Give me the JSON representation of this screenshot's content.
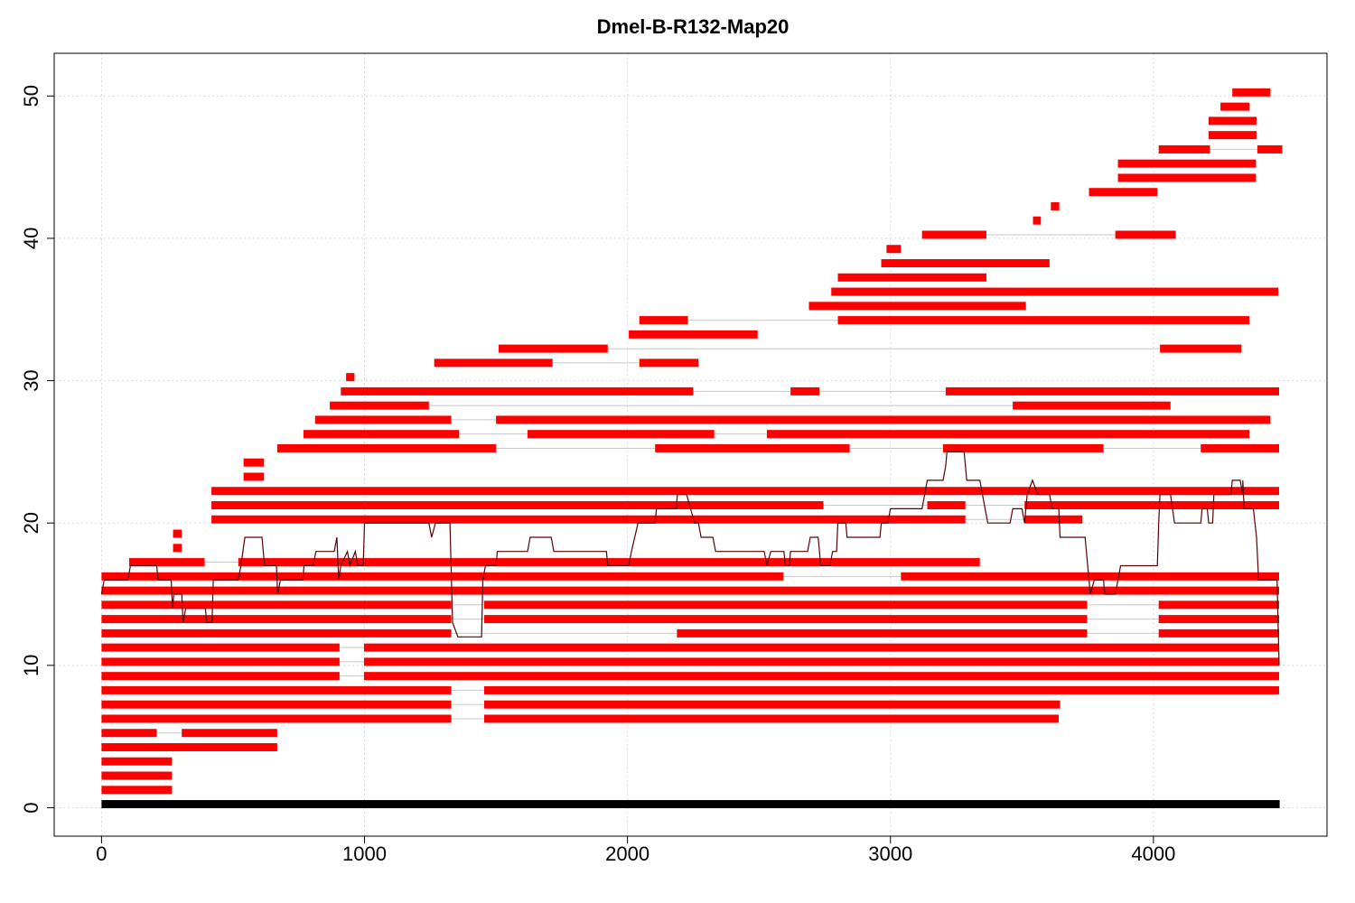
{
  "chart_data": {
    "type": "bar",
    "title": "Dmel-B-R132-Map20",
    "xlabel": "",
    "ylabel": "",
    "xlim": [
      -180,
      4660
    ],
    "ylim": [
      -2,
      53
    ],
    "x_ticks": [
      0,
      1000,
      2000,
      3000,
      4000
    ],
    "y_ticks": [
      0,
      10,
      20,
      30,
      40,
      50
    ],
    "grid": true,
    "colors": {
      "segment": "#ff0000",
      "reference": "#000000",
      "connector": "#c8c8c8",
      "coverage": "#5a0000",
      "grid": "#d9d9d9"
    },
    "reference": {
      "y": 0.25,
      "x_start": 0,
      "x_end": 4480
    },
    "rows": [
      {
        "y": 1.25,
        "segments": [
          [
            0,
            268
          ]
        ]
      },
      {
        "y": 2.25,
        "segments": [
          [
            0,
            268
          ]
        ]
      },
      {
        "y": 3.25,
        "segments": [
          [
            0,
            268
          ]
        ]
      },
      {
        "y": 4.25,
        "segments": [
          [
            0,
            668
          ]
        ]
      },
      {
        "y": 5.25,
        "segments": [
          [
            0,
            210
          ],
          [
            305,
            668
          ]
        ]
      },
      {
        "y": 6.25,
        "segments": [
          [
            0,
            1330
          ],
          [
            1455,
            3640
          ]
        ]
      },
      {
        "y": 7.25,
        "segments": [
          [
            0,
            1330
          ],
          [
            1455,
            3645
          ]
        ]
      },
      {
        "y": 8.25,
        "segments": [
          [
            0,
            1330
          ],
          [
            1455,
            4478
          ]
        ]
      },
      {
        "y": 9.25,
        "segments": [
          [
            0,
            905
          ],
          [
            998,
            4478
          ]
        ]
      },
      {
        "y": 10.25,
        "segments": [
          [
            0,
            905
          ],
          [
            998,
            4478
          ]
        ]
      },
      {
        "y": 11.25,
        "segments": [
          [
            0,
            905
          ],
          [
            998,
            4478
          ]
        ]
      },
      {
        "y": 12.25,
        "segments": [
          [
            0,
            1330
          ],
          [
            2188,
            3748
          ],
          [
            4020,
            4478
          ]
        ]
      },
      {
        "y": 13.25,
        "segments": [
          [
            0,
            1330
          ],
          [
            1455,
            3748
          ],
          [
            4020,
            4478
          ]
        ]
      },
      {
        "y": 14.25,
        "segments": [
          [
            0,
            1330
          ],
          [
            1455,
            3748
          ],
          [
            4020,
            4478
          ]
        ]
      },
      {
        "y": 15.25,
        "segments": [
          [
            0,
            4478
          ]
        ]
      },
      {
        "y": 16.25,
        "segments": [
          [
            0,
            2593
          ],
          [
            3040,
            4478
          ]
        ]
      },
      {
        "y": 17.25,
        "segments": [
          [
            105,
            392
          ],
          [
            520,
            3340
          ]
        ]
      },
      {
        "y": 18.25,
        "segments": [
          [
            272,
            305
          ]
        ]
      },
      {
        "y": 19.25,
        "segments": [
          [
            272,
            305
          ]
        ]
      },
      {
        "y": 20.25,
        "segments": [
          [
            418,
            3285
          ],
          [
            3510,
            3730
          ]
        ]
      },
      {
        "y": 21.25,
        "segments": [
          [
            418,
            2745
          ],
          [
            3140,
            3285
          ],
          [
            3510,
            4478
          ]
        ]
      },
      {
        "y": 22.25,
        "segments": [
          [
            418,
            4478
          ]
        ]
      },
      {
        "y": 23.25,
        "segments": [
          [
            540,
            618
          ]
        ]
      },
      {
        "y": 24.25,
        "segments": [
          [
            540,
            618
          ]
        ]
      },
      {
        "y": 25.25,
        "segments": [
          [
            668,
            1500
          ],
          [
            2105,
            2845
          ],
          [
            3200,
            3810
          ],
          [
            4180,
            4478
          ]
        ]
      },
      {
        "y": 26.25,
        "segments": [
          [
            768,
            1360
          ],
          [
            1620,
            2330
          ],
          [
            2530,
            4365
          ]
        ]
      },
      {
        "y": 27.25,
        "segments": [
          [
            812,
            1330
          ],
          [
            1500,
            4445
          ]
        ]
      },
      {
        "y": 28.25,
        "segments": [
          [
            868,
            1245
          ],
          [
            3465,
            4065
          ]
        ]
      },
      {
        "y": 29.25,
        "segments": [
          [
            910,
            2250
          ],
          [
            2620,
            2730
          ],
          [
            3210,
            4478
          ]
        ]
      },
      {
        "y": 30.25,
        "segments": [
          [
            930,
            962
          ]
        ]
      },
      {
        "y": 31.25,
        "segments": [
          [
            1265,
            1715
          ],
          [
            2045,
            2270
          ]
        ]
      },
      {
        "y": 32.25,
        "segments": [
          [
            1510,
            1925
          ],
          [
            4025,
            4335
          ]
        ]
      },
      {
        "y": 33.25,
        "segments": [
          [
            2005,
            2495
          ]
        ]
      },
      {
        "y": 34.25,
        "segments": [
          [
            2045,
            2230
          ],
          [
            2800,
            4365
          ]
        ]
      },
      {
        "y": 35.25,
        "segments": [
          [
            2690,
            3515
          ]
        ]
      },
      {
        "y": 36.25,
        "segments": [
          [
            2775,
            4475
          ]
        ]
      },
      {
        "y": 37.25,
        "segments": [
          [
            2800,
            3365
          ]
        ]
      },
      {
        "y": 38.25,
        "segments": [
          [
            2965,
            3605
          ]
        ]
      },
      {
        "y": 39.25,
        "segments": [
          [
            2985,
            3040
          ]
        ]
      },
      {
        "y": 40.25,
        "segments": [
          [
            3120,
            3365
          ],
          [
            3855,
            4085
          ]
        ]
      },
      {
        "y": 41.25,
        "segments": [
          [
            3542,
            3572
          ]
        ]
      },
      {
        "y": 42.25,
        "segments": [
          [
            3610,
            3642
          ]
        ]
      },
      {
        "y": 43.25,
        "segments": [
          [
            3755,
            4015
          ]
        ]
      },
      {
        "y": 44.25,
        "segments": [
          [
            3865,
            4390
          ]
        ]
      },
      {
        "y": 45.25,
        "segments": [
          [
            3865,
            4390
          ]
        ]
      },
      {
        "y": 46.25,
        "segments": [
          [
            4020,
            4215
          ],
          [
            4395,
            4490
          ]
        ]
      },
      {
        "y": 47.25,
        "segments": [
          [
            4210,
            4392
          ]
        ]
      },
      {
        "y": 48.25,
        "segments": [
          [
            4210,
            4392
          ]
        ]
      },
      {
        "y": 49.25,
        "segments": [
          [
            4255,
            4365
          ]
        ]
      },
      {
        "y": 50.25,
        "segments": [
          [
            4300,
            4445
          ]
        ]
      }
    ],
    "coverage_line": [
      [
        0,
        15
      ],
      [
        10,
        16
      ],
      [
        100,
        16
      ],
      [
        110,
        17
      ],
      [
        210,
        17
      ],
      [
        215,
        16
      ],
      [
        265,
        16
      ],
      [
        270,
        14
      ],
      [
        275,
        15
      ],
      [
        305,
        15
      ],
      [
        310,
        13
      ],
      [
        320,
        14
      ],
      [
        395,
        14
      ],
      [
        400,
        13
      ],
      [
        420,
        13
      ],
      [
        425,
        16
      ],
      [
        520,
        16
      ],
      [
        530,
        17
      ],
      [
        545,
        19
      ],
      [
        610,
        19
      ],
      [
        620,
        17
      ],
      [
        665,
        17
      ],
      [
        670,
        15
      ],
      [
        680,
        16
      ],
      [
        765,
        16
      ],
      [
        770,
        17
      ],
      [
        805,
        17
      ],
      [
        815,
        18
      ],
      [
        885,
        18
      ],
      [
        895,
        19
      ],
      [
        902,
        16
      ],
      [
        910,
        17
      ],
      [
        935,
        18
      ],
      [
        945,
        17
      ],
      [
        965,
        18
      ],
      [
        975,
        17
      ],
      [
        995,
        17
      ],
      [
        1000,
        20
      ],
      [
        1245,
        20
      ],
      [
        1255,
        19
      ],
      [
        1270,
        20
      ],
      [
        1325,
        20
      ],
      [
        1335,
        13
      ],
      [
        1355,
        12
      ],
      [
        1445,
        12
      ],
      [
        1450,
        16
      ],
      [
        1460,
        17
      ],
      [
        1500,
        17
      ],
      [
        1505,
        18
      ],
      [
        1620,
        18
      ],
      [
        1630,
        19
      ],
      [
        1710,
        19
      ],
      [
        1720,
        18
      ],
      [
        1920,
        18
      ],
      [
        1925,
        17
      ],
      [
        2005,
        17
      ],
      [
        2015,
        18
      ],
      [
        2040,
        20
      ],
      [
        2105,
        20
      ],
      [
        2110,
        21
      ],
      [
        2185,
        21
      ],
      [
        2190,
        22
      ],
      [
        2225,
        22
      ],
      [
        2240,
        21
      ],
      [
        2255,
        20
      ],
      [
        2270,
        20
      ],
      [
        2280,
        19
      ],
      [
        2325,
        19
      ],
      [
        2335,
        18
      ],
      [
        2520,
        18
      ],
      [
        2530,
        17
      ],
      [
        2545,
        18
      ],
      [
        2595,
        18
      ],
      [
        2600,
        17
      ],
      [
        2615,
        17
      ],
      [
        2620,
        18
      ],
      [
        2685,
        18
      ],
      [
        2695,
        19
      ],
      [
        2725,
        19
      ],
      [
        2735,
        17
      ],
      [
        2770,
        17
      ],
      [
        2780,
        18
      ],
      [
        2795,
        18
      ],
      [
        2800,
        20
      ],
      [
        2830,
        20
      ],
      [
        2835,
        19
      ],
      [
        2960,
        19
      ],
      [
        2965,
        20
      ],
      [
        2990,
        20
      ],
      [
        3000,
        21
      ],
      [
        3120,
        21
      ],
      [
        3130,
        22
      ],
      [
        3140,
        23
      ],
      [
        3200,
        23
      ],
      [
        3210,
        24
      ],
      [
        3215,
        25
      ],
      [
        3280,
        25
      ],
      [
        3290,
        23
      ],
      [
        3340,
        23
      ],
      [
        3350,
        22
      ],
      [
        3360,
        21
      ],
      [
        3370,
        20
      ],
      [
        3455,
        20
      ],
      [
        3465,
        21
      ],
      [
        3500,
        21
      ],
      [
        3510,
        20
      ],
      [
        3520,
        22
      ],
      [
        3540,
        23
      ],
      [
        3560,
        22
      ],
      [
        3605,
        22
      ],
      [
        3615,
        21
      ],
      [
        3640,
        21
      ],
      [
        3645,
        19
      ],
      [
        3740,
        19
      ],
      [
        3750,
        17
      ],
      [
        3760,
        15
      ],
      [
        3775,
        16
      ],
      [
        3810,
        16
      ],
      [
        3815,
        15
      ],
      [
        3855,
        15
      ],
      [
        3865,
        16
      ],
      [
        3875,
        17
      ],
      [
        4015,
        17
      ],
      [
        4020,
        20
      ],
      [
        4025,
        22
      ],
      [
        4065,
        22
      ],
      [
        4080,
        20
      ],
      [
        4180,
        20
      ],
      [
        4185,
        21
      ],
      [
        4205,
        21
      ],
      [
        4210,
        20
      ],
      [
        4225,
        20
      ],
      [
        4230,
        22
      ],
      [
        4295,
        22
      ],
      [
        4300,
        23
      ],
      [
        4330,
        23
      ],
      [
        4340,
        22
      ],
      [
        4340,
        23
      ],
      [
        4345,
        21
      ],
      [
        4380,
        21
      ],
      [
        4392,
        19
      ],
      [
        4400,
        16
      ],
      [
        4470,
        16
      ],
      [
        4478,
        10
      ]
    ]
  }
}
